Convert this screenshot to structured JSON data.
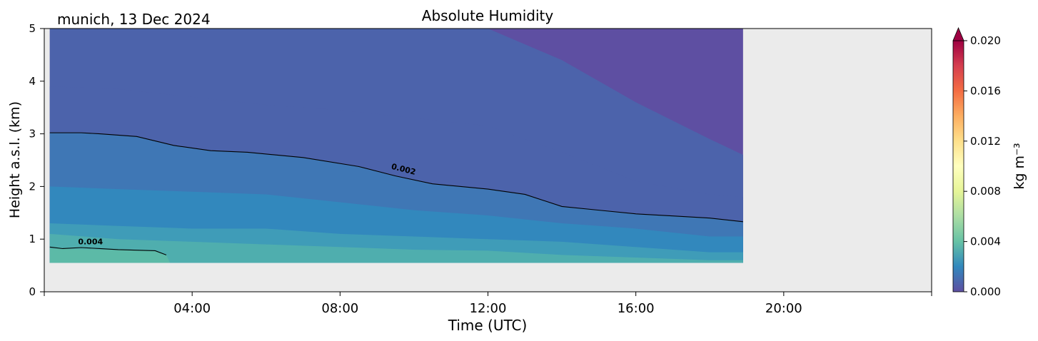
{
  "chart_data": {
    "type": "heatmap",
    "title": "Absolute Humidity",
    "subtitle": "munich, 13 Dec 2024",
    "xlabel": "Time (UTC)",
    "ylabel": "Height a.s.l. (km)",
    "xlim_hours": [
      0,
      24
    ],
    "ylim_km": [
      0,
      5
    ],
    "x_ticks": [
      {
        "hour": 4,
        "label": "04:00"
      },
      {
        "hour": 8,
        "label": "08:00"
      },
      {
        "hour": 12,
        "label": "12:00"
      },
      {
        "hour": 16,
        "label": "16:00"
      },
      {
        "hour": 20,
        "label": "20:00"
      }
    ],
    "y_ticks": [
      0,
      1,
      2,
      3,
      4,
      5
    ],
    "data_extent": {
      "time_hours": [
        0.15,
        18.9
      ],
      "height_km": [
        0.55,
        5.0
      ]
    },
    "background_color": "#ebebeb",
    "colorbar": {
      "label": "kg m⁻³",
      "range": [
        0.0,
        0.02
      ],
      "ticks": [
        "0.000",
        "0.004",
        "0.008",
        "0.012",
        "0.016",
        "0.020"
      ],
      "extend": "max",
      "colormap": "Spectral_r",
      "stops": [
        "#5e4fa2",
        "#3288bd",
        "#66c2a5",
        "#abdda4",
        "#e6f598",
        "#ffffbf",
        "#fee08b",
        "#fdae61",
        "#f46d43",
        "#d53e4f",
        "#9e0142"
      ]
    },
    "contours": [
      {
        "level": 0.002,
        "label": "0.002",
        "path_time_hours": [
          0.15,
          1.0,
          1.5,
          2.5,
          3.5,
          4.5,
          5.5,
          7.0,
          8.5,
          9.5,
          10.5,
          12.0,
          13.0,
          14.0,
          15.0,
          16.0,
          17.0,
          18.0,
          18.9
        ],
        "path_height_km": [
          3.02,
          3.02,
          3.0,
          2.95,
          2.78,
          2.68,
          2.65,
          2.55,
          2.38,
          2.2,
          2.05,
          1.95,
          1.85,
          1.62,
          1.55,
          1.48,
          1.44,
          1.4,
          1.33
        ]
      },
      {
        "level": 0.004,
        "label": "0.004",
        "path_time_hours": [
          0.15,
          0.5,
          1.0,
          1.5,
          2.0,
          2.5,
          3.0,
          3.3
        ],
        "path_height_km": [
          0.85,
          0.82,
          0.84,
          0.82,
          0.8,
          0.79,
          0.78,
          0.7
        ]
      }
    ],
    "bands": [
      {
        "color": "#5e4fa2",
        "boundary_time_hours": [
          0.15,
          10,
          12,
          14,
          16,
          18,
          18.9
        ],
        "boundary_height_km": [
          5.0,
          5.0,
          5.0,
          4.4,
          3.6,
          2.9,
          2.6
        ]
      },
      {
        "color": "#4c63ab",
        "boundary_time_hours": [
          0.15,
          2,
          4,
          6,
          8,
          10,
          12,
          14,
          16,
          18,
          18.9
        ],
        "boundary_height_km": [
          3.9,
          3.85,
          3.7,
          3.55,
          3.45,
          3.3,
          3.15,
          2.65,
          2.1,
          1.85,
          1.8
        ]
      },
      {
        "color": "#3f77b5",
        "boundary_time_hours": [
          0.15,
          1.0,
          1.5,
          2.5,
          3.5,
          4.5,
          5.5,
          7.0,
          8.5,
          9.5,
          10.5,
          12.0,
          13.0,
          14.0,
          15.0,
          16.0,
          17.0,
          18.0,
          18.9
        ],
        "boundary_height_km": [
          3.02,
          3.02,
          3.0,
          2.95,
          2.78,
          2.68,
          2.65,
          2.55,
          2.38,
          2.2,
          2.05,
          1.95,
          1.85,
          1.62,
          1.55,
          1.48,
          1.44,
          1.4,
          1.33
        ]
      },
      {
        "color": "#3288bd",
        "boundary_time_hours": [
          0.15,
          2,
          4,
          6,
          8,
          10,
          12,
          14,
          16,
          18,
          18.9
        ],
        "boundary_height_km": [
          2.0,
          1.95,
          1.9,
          1.85,
          1.7,
          1.55,
          1.45,
          1.3,
          1.2,
          1.05,
          1.05
        ]
      },
      {
        "color": "#3f9cb8",
        "boundary_time_hours": [
          0.15,
          2,
          4,
          6,
          8,
          10,
          12,
          14,
          16,
          18,
          18.9
        ],
        "boundary_height_km": [
          1.3,
          1.25,
          1.2,
          1.2,
          1.1,
          1.05,
          1.0,
          0.95,
          0.85,
          0.75,
          0.75
        ]
      },
      {
        "color": "#4faeae",
        "boundary_time_hours": [
          0.15,
          2,
          4,
          6,
          8,
          10,
          12,
          14,
          16,
          18,
          18.9
        ],
        "boundary_height_km": [
          1.1,
          1.0,
          0.95,
          0.9,
          0.85,
          0.8,
          0.78,
          0.7,
          0.65,
          0.6,
          0.6
        ]
      },
      {
        "color": "#5cbaa7",
        "boundary_time_hours": [
          0.15,
          3.0,
          3.3,
          3.4
        ],
        "boundary_height_km": [
          0.82,
          0.78,
          0.7,
          0.55
        ]
      }
    ]
  }
}
